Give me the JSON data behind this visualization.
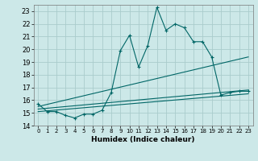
{
  "title": "",
  "xlabel": "Humidex (Indice chaleur)",
  "ylabel": "",
  "bg_color": "#cce8e8",
  "grid_color": "#aacccc",
  "line_color": "#006666",
  "xlim": [
    -0.5,
    23.5
  ],
  "ylim": [
    14,
    23.5
  ],
  "xticks": [
    0,
    1,
    2,
    3,
    4,
    5,
    6,
    7,
    8,
    9,
    10,
    11,
    12,
    13,
    14,
    15,
    16,
    17,
    18,
    19,
    20,
    21,
    22,
    23
  ],
  "yticks": [
    14,
    15,
    16,
    17,
    18,
    19,
    20,
    21,
    22,
    23
  ],
  "series": {
    "main": {
      "x": [
        0,
        1,
        2,
        3,
        4,
        5,
        6,
        7,
        8,
        9,
        10,
        11,
        12,
        13,
        14,
        15,
        16,
        17,
        18,
        19,
        20,
        21,
        22,
        23
      ],
      "y": [
        15.7,
        15.1,
        15.1,
        14.8,
        14.6,
        14.9,
        14.9,
        15.2,
        16.6,
        19.9,
        21.1,
        18.6,
        20.3,
        23.3,
        21.5,
        22.0,
        21.7,
        20.6,
        20.6,
        19.4,
        16.4,
        16.6,
        16.7,
        16.7
      ]
    },
    "trend1": {
      "x": [
        0,
        23
      ],
      "y": [
        15.5,
        19.4
      ]
    },
    "trend2": {
      "x": [
        0,
        23
      ],
      "y": [
        15.3,
        16.8
      ]
    },
    "trend3": {
      "x": [
        0,
        23
      ],
      "y": [
        15.1,
        16.5
      ]
    }
  }
}
